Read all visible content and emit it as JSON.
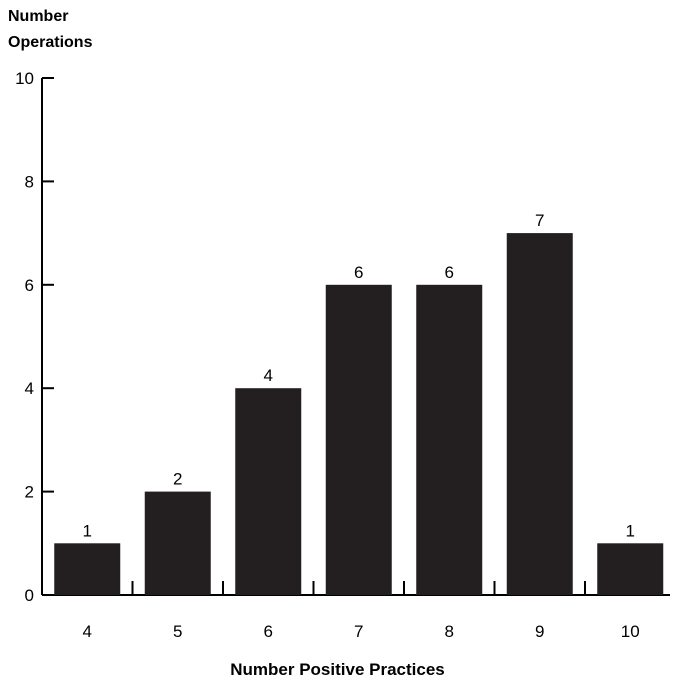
{
  "chart_data": {
    "type": "bar",
    "categories": [
      "4",
      "5",
      "6",
      "7",
      "8",
      "9",
      "10"
    ],
    "values": [
      1,
      2,
      4,
      6,
      6,
      7,
      1
    ],
    "data_labels": [
      "1",
      "2",
      "4",
      "6",
      "6",
      "7",
      "1"
    ],
    "ylabel_lines": [
      "Number",
      "Operations"
    ],
    "xlabel": "Number Positive Practices",
    "ylim": [
      0,
      10
    ],
    "yticks": [
      0,
      2,
      4,
      6,
      8,
      10
    ],
    "grid": false,
    "bar_color": "#231f20"
  }
}
